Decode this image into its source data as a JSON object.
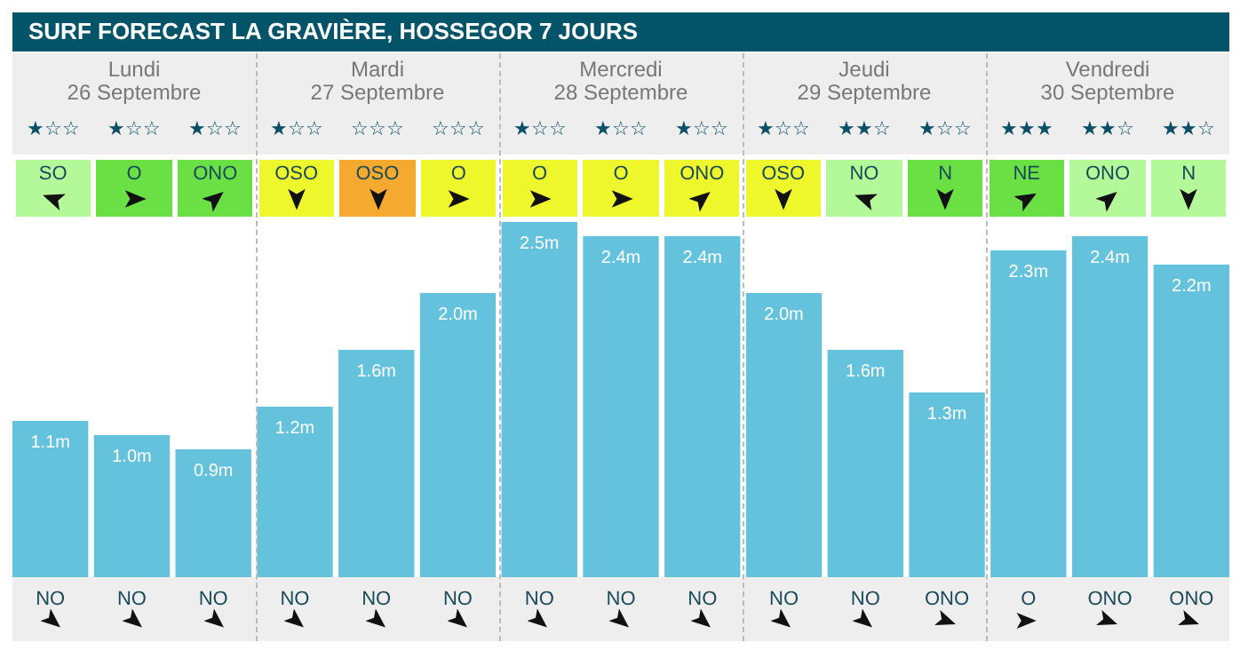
{
  "chart_data": {
    "type": "bar",
    "title": "SURF FORECAST LA GRAVIÈRE, HOSSEGOR 7 JOURS",
    "categories": [
      "NO",
      "NO",
      "NO",
      "NO",
      "NO",
      "NO",
      "NO",
      "NO",
      "NO",
      "NO",
      "NO",
      "ONO",
      "O",
      "ONO",
      "ONO"
    ],
    "values": [
      1.1,
      1.0,
      0.9,
      1.2,
      1.6,
      2.0,
      2.5,
      2.4,
      2.4,
      2.0,
      1.6,
      1.3,
      2.3,
      2.4,
      2.2
    ],
    "value_labels": [
      "1.1m",
      "1.0m",
      "0.9m",
      "1.2m",
      "1.6m",
      "2.0m",
      "2.5m",
      "2.4m",
      "2.4m",
      "2.0m",
      "1.6m",
      "1.3m",
      "2.3m",
      "2.4m",
      "2.2m"
    ],
    "color": "#64c2dc",
    "annotations": [
      "Lundi",
      "26 Septembre",
      "Mardi",
      "27 Septembre",
      "Mercredi",
      "28 Septembre",
      "Jeudi",
      "29 Septembre",
      "Vendredi",
      "30 Septembre",
      "★☆☆",
      "★☆☆",
      "★☆☆",
      "★☆☆",
      "☆☆☆",
      "☆☆☆",
      "★☆☆",
      "★☆☆",
      "★☆☆",
      "★☆☆",
      "★★☆",
      "★☆☆",
      "★★★",
      "★★☆",
      "★★☆",
      "SO",
      "O",
      "ONO",
      "OSO",
      "OSO",
      "O",
      "O",
      "O",
      "ONO",
      "OSO",
      "NO",
      "N",
      "NE",
      "ONO",
      "N"
    ]
  }
}
